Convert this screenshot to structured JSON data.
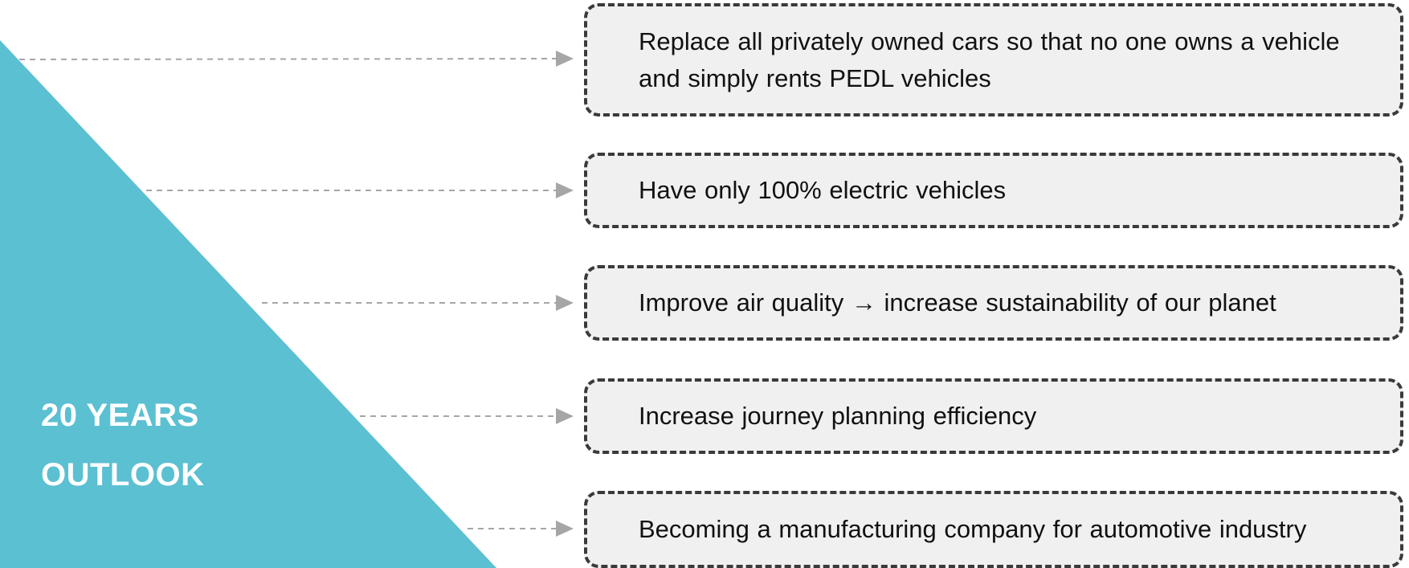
{
  "outlook": {
    "line1": "20 YEARS",
    "line2": "OUTLOOK",
    "color": "#5bc0d1"
  },
  "goals": [
    {
      "text": "Replace all privately owned cars so that no one owns a vehicle and simply rents PEDL vehicles"
    },
    {
      "text": "Have only 100% electric vehicles"
    },
    {
      "text": "Improve air quality → increase sustainability of our planet"
    },
    {
      "text": "Increase journey planning efficiency"
    },
    {
      "text": "Becoming a manufacturing company for automotive industry"
    }
  ],
  "colors": {
    "box_fill": "#f0f0f0",
    "box_border": "#3a3a3a",
    "connector": "#a6a6a6"
  }
}
